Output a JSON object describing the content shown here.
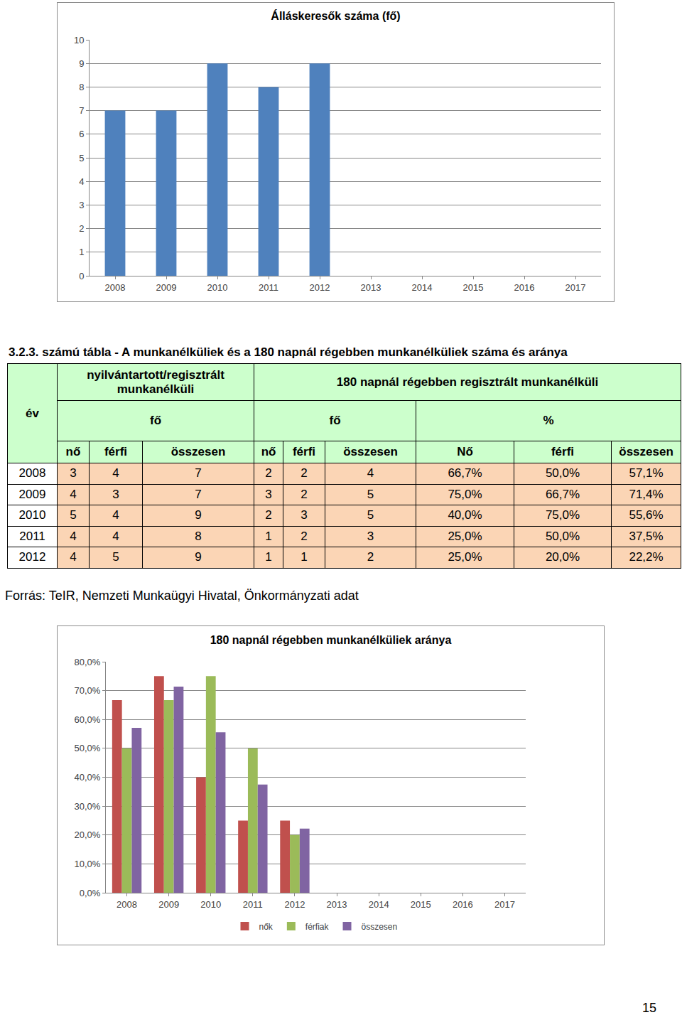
{
  "chart_data": [
    {
      "type": "bar",
      "title": "Álláskeresők száma (fő)",
      "categories": [
        "2008",
        "2009",
        "2010",
        "2011",
        "2012",
        "2013",
        "2014",
        "2015",
        "2016",
        "2017"
      ],
      "values": [
        7,
        7,
        9,
        8,
        9,
        null,
        null,
        null,
        null,
        null
      ],
      "color": "#4f81bd",
      "ylim": [
        0,
        10
      ],
      "yticks": [
        0,
        1,
        2,
        3,
        4,
        5,
        6,
        7,
        8,
        9,
        10
      ],
      "grid": true
    },
    {
      "type": "bar",
      "title": "180 napnál régebben munkanélküliek aránya",
      "categories": [
        "2008",
        "2009",
        "2010",
        "2011",
        "2012",
        "2013",
        "2014",
        "2015",
        "2016",
        "2017"
      ],
      "series": [
        {
          "name": "nők",
          "color": "#c0504d",
          "values": [
            66.7,
            75,
            40,
            25,
            25,
            null,
            null,
            null,
            null,
            null
          ]
        },
        {
          "name": "férfiak",
          "color": "#9bbb59",
          "values": [
            50,
            66.7,
            75,
            50,
            20,
            null,
            null,
            null,
            null,
            null
          ]
        },
        {
          "name": "összesen",
          "color": "#8064a2",
          "values": [
            57.1,
            71.4,
            55.6,
            37.5,
            22.2,
            null,
            null,
            null,
            null,
            null
          ]
        }
      ],
      "ylim": [
        0,
        80
      ],
      "yticks": [
        {
          "value": 0,
          "label": "0,0%"
        },
        {
          "value": 10,
          "label": "10,0%"
        },
        {
          "value": 20,
          "label": "20,0%"
        },
        {
          "value": 30,
          "label": "30,0%"
        },
        {
          "value": 40,
          "label": "40,0%"
        },
        {
          "value": 50,
          "label": "50,0%"
        },
        {
          "value": 60,
          "label": "60,0%"
        },
        {
          "value": 70,
          "label": "70,0%"
        },
        {
          "value": 80,
          "label": "80,0%"
        }
      ],
      "grid": true,
      "legend": "bottom"
    }
  ],
  "caption": "3.2.3. számú tábla - A munkanélküliek és a 180 napnál régebben munkanélküliek száma és aránya",
  "table": {
    "corner": "év",
    "group_headers": [
      "nyilvántartott/regisztrált munkanélküli",
      "180 napnál régebben regisztrált munkanélküli"
    ],
    "unit_headers": [
      "fő",
      "fő",
      "%"
    ],
    "column_headers": [
      "nő",
      "férfi",
      "összesen",
      "nő",
      "férfi",
      "összesen",
      "Nő",
      "férfi",
      "összesen"
    ],
    "rows": [
      [
        "2008",
        "3",
        "4",
        "7",
        "2",
        "2",
        "4",
        "66,7%",
        "50,0%",
        "57,1%"
      ],
      [
        "2009",
        "4",
        "3",
        "7",
        "3",
        "2",
        "5",
        "75,0%",
        "66,7%",
        "71,4%"
      ],
      [
        "2010",
        "5",
        "4",
        "9",
        "2",
        "3",
        "5",
        "40,0%",
        "75,0%",
        "55,6%"
      ],
      [
        "2011",
        "4",
        "4",
        "8",
        "1",
        "2",
        "3",
        "25,0%",
        "50,0%",
        "37,5%"
      ],
      [
        "2012",
        "4",
        "5",
        "9",
        "1",
        "1",
        "2",
        "25,0%",
        "20,0%",
        "22,2%"
      ]
    ]
  },
  "source": "Forrás: TeIR, Nemzeti Munkaügyi Hivatal, Önkormányzati adat",
  "page_number": "15"
}
